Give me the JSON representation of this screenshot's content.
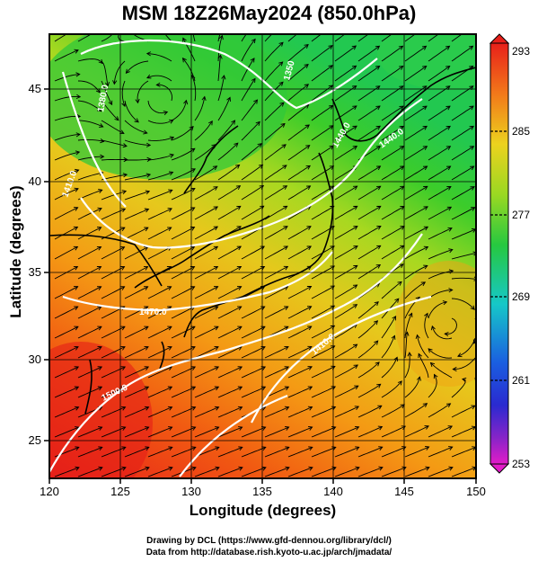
{
  "title": "MSM 18Z26May2024 (850.0hPa)",
  "xaxis": {
    "label": "Longitude (degrees)",
    "range": [
      120,
      150
    ],
    "ticks": [
      "120",
      "125",
      "130",
      "135",
      "140",
      "145",
      "150"
    ]
  },
  "yaxis": {
    "label": "Latitude  (degrees)",
    "range": [
      22.4,
      47.6
    ],
    "ticks": [
      "25",
      "30",
      "35",
      "40",
      "45"
    ]
  },
  "colorbar": {
    "ticks": [
      "293",
      "285",
      "277",
      "269",
      "261",
      "253"
    ],
    "min": 253,
    "max": 293
  },
  "contours": [
    {
      "label": "1500.0"
    },
    {
      "label": "1470.0"
    },
    {
      "label": "1440.0"
    },
    {
      "label": "1410.0"
    },
    {
      "label": "1380.0"
    },
    {
      "label": "1350"
    },
    {
      "label": "1440.0"
    },
    {
      "label": "1410.0"
    }
  ],
  "credits": [
    "Drawing by DCL (https://www.gfd-dennou.org/library/dcl/)",
    "Data from http://database.rish.kyoto-u.ac.jp/arch/jmadata/"
  ]
}
